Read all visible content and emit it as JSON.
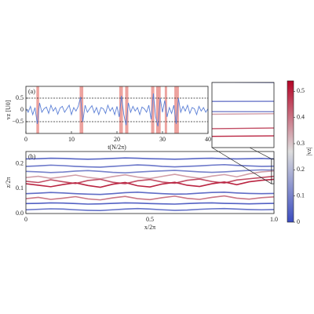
{
  "chart_data": [
    {
      "type": "line",
      "panel_label": "(a)",
      "xlabel": "t(N/2π)",
      "ylabel": "vz [U0]",
      "xlim": [
        0,
        40
      ],
      "ylim": [
        -1,
        1
      ],
      "xticks": [
        0,
        10,
        20,
        30,
        40
      ],
      "yticks": [
        {
          "value": -0.5,
          "label": "−0.5"
        },
        0,
        0.5
      ],
      "reference_lines": [
        -0.5,
        0.5
      ],
      "highlight_intervals": [
        [
          2.3,
          2.9
        ],
        [
          11.8,
          12.6
        ],
        [
          20.5,
          21.3
        ],
        [
          21.8,
          22.5
        ],
        [
          27.5,
          28.2
        ],
        [
          28.6,
          29.6
        ],
        [
          30.5,
          31
        ],
        [
          32.6,
          33.6
        ]
      ],
      "highlight_color": "#d73027",
      "color": "#5b7fd6",
      "x": [
        0,
        0.5,
        1,
        1.5,
        2,
        2.5,
        3,
        3.5,
        4,
        4.5,
        5,
        5.5,
        6,
        6.5,
        7,
        7.5,
        8,
        8.5,
        9,
        9.5,
        10,
        10.5,
        11,
        11.5,
        12,
        12.5,
        13,
        13.5,
        14,
        14.5,
        15,
        15.5,
        16,
        16.5,
        17,
        17.5,
        18,
        18.5,
        19,
        19.5,
        20,
        20.5,
        21,
        21.5,
        22,
        22.5,
        23,
        23.5,
        24,
        24.5,
        25,
        25.5,
        26,
        26.5,
        27,
        27.5,
        28,
        28.5,
        29,
        29.5,
        30,
        30.5,
        31,
        31.5,
        32,
        32.5,
        33,
        33.5,
        34,
        34.5,
        35,
        35.5,
        36,
        36.5,
        37,
        37.5,
        38,
        38.5,
        39,
        39.5,
        40
      ],
      "values": [
        0.05,
        -0.1,
        0.15,
        -0.2,
        0.1,
        -0.6,
        0.3,
        -0.1,
        0.05,
        0.12,
        -0.15,
        0.2,
        -0.05,
        0.1,
        -0.18,
        0.08,
        0.15,
        -0.1,
        0.05,
        0.2,
        -0.2,
        0.1,
        -0.05,
        0.15,
        0.55,
        -0.5,
        0.2,
        -0.1,
        0.05,
        0.18,
        -0.12,
        0.1,
        -0.2,
        0.1,
        0.05,
        -0.15,
        0.2,
        -0.05,
        0.1,
        -0.2,
        0.15,
        -0.3,
        0.6,
        -0.2,
        -0.65,
        0.3,
        -0.1,
        0.15,
        -0.05,
        0.1,
        -0.2,
        0.12,
        0.05,
        -0.1,
        0.2,
        -0.4,
        0.7,
        -0.3,
        -0.7,
        0.5,
        -0.1,
        0.4,
        -0.3,
        0.1,
        -0.15,
        0.2,
        -0.6,
        0.5,
        -0.1,
        0.15,
        -0.05,
        0.2,
        -0.15,
        0.1,
        0.05,
        -0.2,
        0.15,
        -0.05,
        0.1,
        -0.1,
        0.05
      ]
    },
    {
      "type": "trajectories",
      "panel_label": "(b)",
      "xlabel": "x/2π",
      "ylabel": "z/2π",
      "xlim": [
        0,
        1
      ],
      "ylim": [
        0,
        0.25
      ],
      "xticks": [
        0,
        0.5,
        {
          "value": 1,
          "label": "1.0"
        }
      ],
      "yticks": [
        {
          "value": 0,
          "label": "0.0"
        },
        0.1,
        0.2
      ],
      "colorbar": {
        "label": "|vz|",
        "clim": [
          0,
          0.54
        ],
        "ticks": [
          0,
          0.1,
          0.2,
          0.3,
          0.4,
          0.5
        ],
        "colors": [
          "#3b4cc0",
          "#dddddd",
          "#b40426"
        ]
      },
      "inset": {
        "xlim": [
          0.99,
          1.0
        ],
        "ylim": [
          0.12,
          0.22
        ]
      },
      "x": [
        0,
        0.05,
        0.1,
        0.15,
        0.2,
        0.25,
        0.3,
        0.35,
        0.4,
        0.45,
        0.5,
        0.55,
        0.6,
        0.65,
        0.7,
        0.75,
        0.8,
        0.85,
        0.9,
        0.95,
        1
      ],
      "trajectories": [
        {
          "speed": 0.05,
          "z": [
            0.22,
            0.221,
            0.223,
            0.222,
            0.22,
            0.219,
            0.22,
            0.222,
            0.224,
            0.223,
            0.221,
            0.22,
            0.219,
            0.22,
            0.222,
            0.223,
            0.221,
            0.22,
            0.221,
            0.222,
            0.22
          ]
        },
        {
          "speed": 0.08,
          "z": [
            0.19,
            0.192,
            0.195,
            0.193,
            0.19,
            0.188,
            0.187,
            0.19,
            0.193,
            0.196,
            0.194,
            0.19,
            0.188,
            0.19,
            0.192,
            0.195,
            0.197,
            0.194,
            0.192,
            0.19,
            0.191
          ]
        },
        {
          "speed": 0.1,
          "z": [
            0.17,
            0.168,
            0.165,
            0.167,
            0.171,
            0.173,
            0.17,
            0.166,
            0.164,
            0.167,
            0.17,
            0.172,
            0.174,
            0.171,
            0.168,
            0.166,
            0.168,
            0.171,
            0.174,
            0.176,
            0.175
          ]
        },
        {
          "speed": 0.35,
          "z": [
            0.145,
            0.15,
            0.142,
            0.148,
            0.155,
            0.146,
            0.14,
            0.149,
            0.156,
            0.147,
            0.141,
            0.15,
            0.158,
            0.149,
            0.142,
            0.151,
            0.157,
            0.148,
            0.16,
            0.168,
            0.172
          ]
        },
        {
          "speed": 0.45,
          "z": [
            0.13,
            0.125,
            0.136,
            0.128,
            0.121,
            0.133,
            0.138,
            0.126,
            0.12,
            0.132,
            0.137,
            0.127,
            0.122,
            0.134,
            0.139,
            0.129,
            0.123,
            0.135,
            0.14,
            0.145,
            0.15
          ]
        },
        {
          "speed": 0.5,
          "z": [
            0.12,
            0.114,
            0.108,
            0.117,
            0.124,
            0.113,
            0.106,
            0.118,
            0.125,
            0.112,
            0.107,
            0.119,
            0.126,
            0.114,
            0.109,
            0.12,
            0.127,
            0.116,
            0.128,
            0.134,
            0.138
          ]
        },
        {
          "speed": 0.06,
          "z": [
            0.08,
            0.082,
            0.085,
            0.083,
            0.08,
            0.078,
            0.077,
            0.08,
            0.084,
            0.086,
            0.083,
            0.08,
            0.078,
            0.079,
            0.082,
            0.085,
            0.086,
            0.083,
            0.081,
            0.08,
            0.081
          ]
        },
        {
          "speed": 0.4,
          "z": [
            0.06,
            0.065,
            0.057,
            0.062,
            0.068,
            0.059,
            0.055,
            0.063,
            0.069,
            0.06,
            0.056,
            0.064,
            0.07,
            0.061,
            0.057,
            0.065,
            0.071,
            0.062,
            0.058,
            0.064,
            0.067
          ]
        },
        {
          "speed": 0.04,
          "z": [
            0.04,
            0.041,
            0.043,
            0.042,
            0.04,
            0.038,
            0.039,
            0.041,
            0.043,
            0.042,
            0.04,
            0.039,
            0.038,
            0.04,
            0.042,
            0.043,
            0.041,
            0.04,
            0.039,
            0.04,
            0.041
          ]
        },
        {
          "speed": 0.07,
          "z": [
            0.015,
            0.017,
            0.019,
            0.018,
            0.015,
            0.013,
            0.012,
            0.015,
            0.018,
            0.02,
            0.018,
            0.015,
            0.013,
            0.014,
            0.017,
            0.019,
            0.02,
            0.018,
            0.016,
            0.015,
            0.016
          ]
        }
      ]
    }
  ]
}
